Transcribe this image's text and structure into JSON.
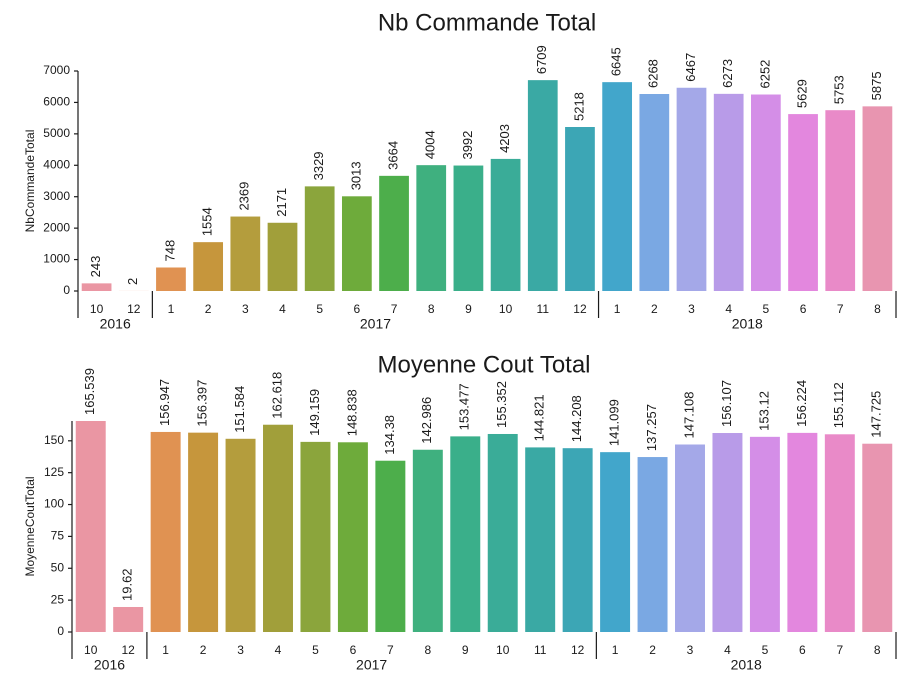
{
  "chart_data": [
    {
      "type": "bar",
      "title": "Nb Commande Total",
      "ylabel": "NbCommandeTotal",
      "ylim": [
        0,
        7000
      ],
      "yticks": [
        0,
        1000,
        2000,
        3000,
        4000,
        5000,
        6000,
        7000
      ],
      "grid": false,
      "categories": [
        "10",
        "12",
        "1",
        "2",
        "3",
        "4",
        "5",
        "6",
        "7",
        "8",
        "9",
        "10",
        "11",
        "12",
        "1",
        "2",
        "3",
        "4",
        "5",
        "6",
        "7",
        "8"
      ],
      "years": [
        {
          "label": "2016",
          "count": 2
        },
        {
          "label": "2017",
          "count": 12
        },
        {
          "label": "2018",
          "count": 8
        }
      ],
      "values": [
        243,
        2,
        748,
        1554,
        2369,
        2171,
        3329,
        3013,
        3664,
        4004,
        3992,
        4203,
        6709,
        5218,
        6645,
        6268,
        6467,
        6273,
        6252,
        5629,
        5753,
        5875
      ],
      "value_labels": [
        "243",
        "2",
        "748",
        "1554",
        "2369",
        "2171",
        "3329",
        "3013",
        "3664",
        "4004",
        "3992",
        "4203",
        "6709",
        "5218",
        "6645",
        "6268",
        "6467",
        "6273",
        "6252",
        "5629",
        "5753",
        "5875"
      ],
      "colors": [
        "#ea96a3",
        "#e58f65",
        "#e09252",
        "#c6963c",
        "#b49d3d",
        "#a19f3a",
        "#8ba53c",
        "#6eab3b",
        "#4dae4b",
        "#3fb07f",
        "#3aaf8a",
        "#3aac98",
        "#3aa9a4",
        "#3ca6b5",
        "#42a6cb",
        "#7aa8e3",
        "#a4a8e8",
        "#b89be8",
        "#d48ee7",
        "#e387de",
        "#e98ac8",
        "#e895b0"
      ]
    },
    {
      "type": "bar",
      "title": "Moyenne Cout Total",
      "ylabel": "MoyenneCoutTotal",
      "ylim": [
        0,
        165.539
      ],
      "yticks": [
        0,
        25,
        50,
        75,
        100,
        125,
        150
      ],
      "grid": false,
      "categories": [
        "10",
        "12",
        "1",
        "2",
        "3",
        "4",
        "5",
        "6",
        "7",
        "8",
        "9",
        "10",
        "11",
        "12",
        "1",
        "2",
        "3",
        "4",
        "5",
        "6",
        "7",
        "8"
      ],
      "years": [
        {
          "label": "2016",
          "count": 2
        },
        {
          "label": "2017",
          "count": 12
        },
        {
          "label": "2018",
          "count": 8
        }
      ],
      "values": [
        165.539,
        19.62,
        156.947,
        156.397,
        151.584,
        162.618,
        149.159,
        148.838,
        134.38,
        142.986,
        153.477,
        155.352,
        144.821,
        144.208,
        141.099,
        137.257,
        147.108,
        156.107,
        153.12,
        156.224,
        155.112,
        147.725
      ],
      "value_labels": [
        "165.539",
        "19.62",
        "156.947",
        "156.397",
        "151.584",
        "162.618",
        "149.159",
        "148.838",
        "134.38",
        "142.986",
        "153.477",
        "155.352",
        "144.821",
        "144.208",
        "141.099",
        "137.257",
        "147.108",
        "156.107",
        "153.12",
        "156.224",
        "155.112",
        "147.725"
      ],
      "colors": [
        "#ea96a3",
        "#ea96a3",
        "#e09252",
        "#c6963c",
        "#b49d3d",
        "#a19f3a",
        "#8ba53c",
        "#6eab3b",
        "#4dae4b",
        "#3fb07f",
        "#3aaf8a",
        "#3aac98",
        "#3aa9a4",
        "#3ca6b5",
        "#42a6cb",
        "#7aa8e3",
        "#a4a8e8",
        "#b89be8",
        "#d48ee7",
        "#e387de",
        "#e98ac8",
        "#e895b0"
      ]
    }
  ]
}
